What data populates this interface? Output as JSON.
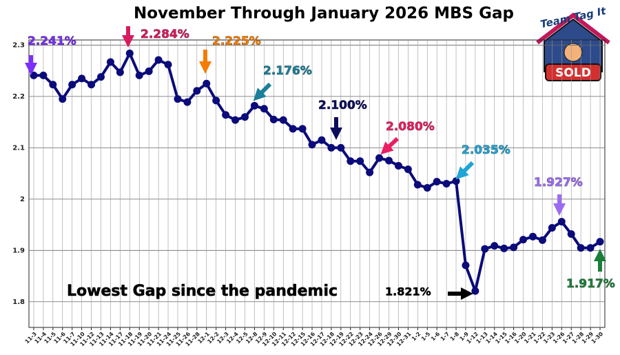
{
  "chart_data": {
    "type": "line",
    "title": "November Through January 2026 MBS Gap",
    "categories": [
      "11-3",
      "11-4",
      "11-5",
      "11-6",
      "11-7",
      "11-10",
      "11-12",
      "11-13",
      "11-14",
      "11-17",
      "11-18",
      "11-19",
      "11-20",
      "11-21",
      "11-24",
      "11-25",
      "11-26",
      "11-28",
      "12-1",
      "12-2",
      "12-3",
      "12-4",
      "12-5",
      "12-8",
      "12-9",
      "12-10",
      "12-11",
      "12-12",
      "12-15",
      "12-16",
      "12-17",
      "12-18",
      "12-19",
      "12-22",
      "12-23",
      "12-24",
      "12-26",
      "12-29",
      "12-30",
      "12-31",
      "1-2",
      "1-5",
      "1-6",
      "1-7",
      "1-8",
      "1-9",
      "1-12",
      "1-13",
      "1-14",
      "1-15",
      "1-16",
      "1-20",
      "1-21",
      "1-22",
      "1-23",
      "1-26",
      "1-27",
      "1-28",
      "1-29",
      "1-30"
    ],
    "series": [
      {
        "name": "MBS Gap",
        "color": "#0b0b7a",
        "values": [
          2.241,
          2.241,
          2.223,
          2.195,
          2.223,
          2.235,
          2.223,
          2.238,
          2.267,
          2.247,
          2.284,
          2.241,
          2.249,
          2.271,
          2.262,
          2.195,
          2.189,
          2.211,
          2.225,
          2.192,
          2.164,
          2.154,
          2.16,
          2.182,
          2.176,
          2.155,
          2.154,
          2.137,
          2.137,
          2.106,
          2.115,
          2.1,
          2.1,
          2.074,
          2.074,
          2.052,
          2.08,
          2.075,
          2.065,
          2.058,
          2.028,
          2.022,
          2.034,
          2.03,
          2.035,
          1.871,
          1.821,
          1.903,
          1.909,
          1.904,
          1.906,
          1.921,
          1.927,
          1.92,
          1.944,
          1.956,
          1.932,
          1.905,
          1.905,
          1.917
        ]
      }
    ],
    "ylim": [
      1.75,
      2.31
    ],
    "yticks": [
      1.8,
      1.9,
      2.0,
      2.1,
      2.2,
      2.3
    ],
    "grid": true,
    "annotations": [
      {
        "text": "2.241%",
        "color": "#7b2ff7"
      },
      {
        "text": "2.284%",
        "color": "#d81b60"
      },
      {
        "text": "2.225%",
        "color": "#f57c00"
      },
      {
        "text": "2.176%",
        "color": "#1a7f9a"
      },
      {
        "text": "2.100%",
        "color": "#0b0b5a"
      },
      {
        "text": "2.080%",
        "color": "#e91e63"
      },
      {
        "text": "2.035%",
        "color": "#1fa5d6"
      },
      {
        "text": "1.927%",
        "color": "#9b6bf2"
      },
      {
        "text": "1.917%",
        "color": "#1b7d3a"
      },
      {
        "text": "Lowest Gap since the pandemic",
        "color": "#000000"
      },
      {
        "text": "1.821%",
        "color": "#000000"
      }
    ],
    "logo": {
      "top": "Team Tag It",
      "badge": "SOLD"
    }
  }
}
